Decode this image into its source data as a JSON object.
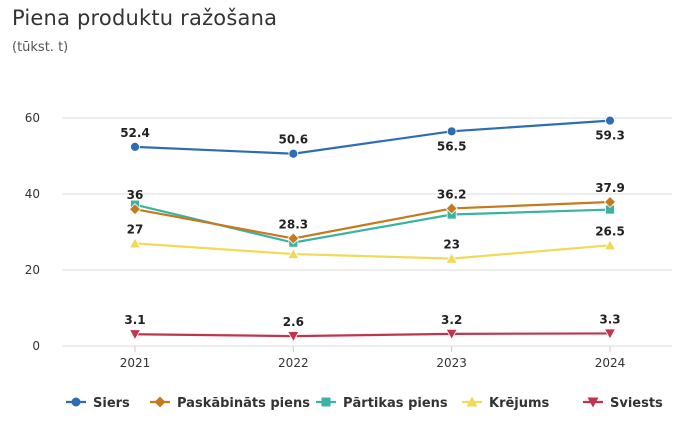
{
  "title": "Piena produktu ražošana",
  "subtitle": "(tūkst. t)",
  "chart_data": {
    "type": "line",
    "x": [
      "2021",
      "2022",
      "2023",
      "2024"
    ],
    "ylim": [
      0,
      60
    ],
    "yticks": [
      0,
      20,
      40,
      60
    ],
    "grid": true,
    "legend_position": "bottom",
    "series": [
      {
        "name": "Siers",
        "color": "#2e6db4",
        "marker": "circle",
        "values": [
          52.4,
          50.6,
          56.5,
          59.3
        ],
        "labels": [
          "52.4",
          "50.6",
          "56.5",
          "59.3"
        ],
        "label_pos": [
          "above",
          "above",
          "below",
          "below"
        ]
      },
      {
        "name": "Paskābināts piens",
        "color": "#c67a1d",
        "marker": "diamond",
        "values": [
          36.0,
          28.3,
          36.2,
          37.9
        ],
        "labels": [
          "36",
          "28.3",
          "36.2",
          "37.9"
        ],
        "label_pos": [
          "above",
          "above",
          "above",
          "above"
        ]
      },
      {
        "name": "Pārtikas piens",
        "color": "#3bb3a3",
        "marker": "square",
        "values": [
          37.2,
          27.2,
          34.6,
          35.9
        ],
        "labels": [
          "",
          "",
          "",
          ""
        ],
        "label_pos": [
          "above",
          "above",
          "above",
          "above"
        ]
      },
      {
        "name": "Krējums",
        "color": "#f2d957",
        "marker": "triangle-up",
        "values": [
          27.0,
          24.2,
          23.0,
          26.5
        ],
        "labels": [
          "27",
          "",
          "23",
          "26.5"
        ],
        "label_pos": [
          "above",
          "above",
          "above",
          "above"
        ]
      },
      {
        "name": "Sviests",
        "color": "#c2344c",
        "marker": "triangle-down",
        "values": [
          3.1,
          2.6,
          3.2,
          3.3
        ],
        "labels": [
          "3.1",
          "2.6",
          "3.2",
          "3.3"
        ],
        "label_pos": [
          "above",
          "above",
          "above",
          "above"
        ]
      }
    ]
  }
}
